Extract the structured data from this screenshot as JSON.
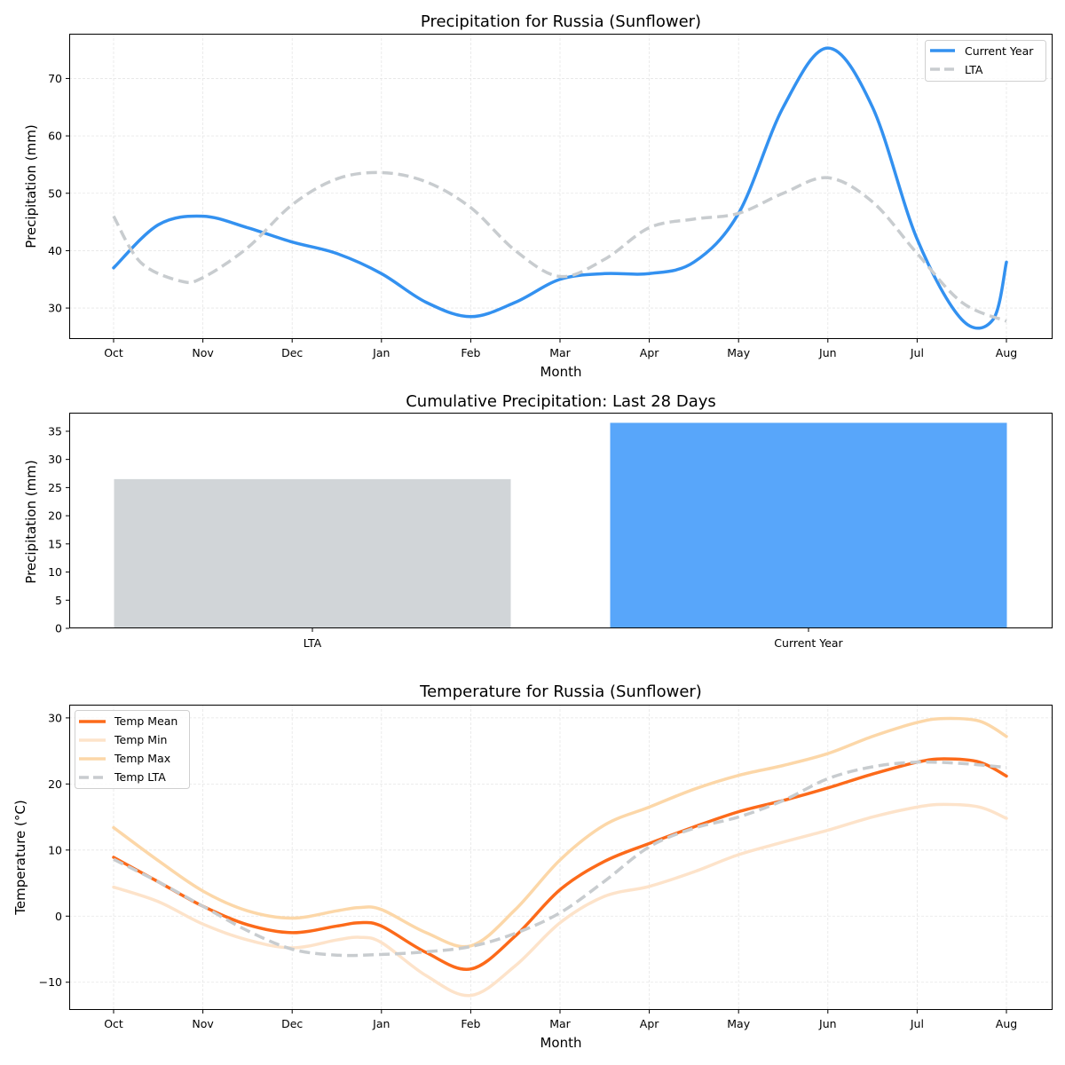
{
  "chart_data": [
    {
      "type": "line",
      "title": "Precipitation for Russia (Sunflower)",
      "xlabel": "Month",
      "ylabel": "Precipitation (mm)",
      "categories": [
        "Oct",
        "Nov",
        "Dec",
        "Jan",
        "Feb",
        "Mar",
        "Apr",
        "May",
        "Jun",
        "Jul",
        "Aug"
      ],
      "yticks": [
        30,
        40,
        50,
        60,
        70
      ],
      "ylim": [
        24.6,
        77.8
      ],
      "grid": true,
      "legend_position": "top-right",
      "series": [
        {
          "name": "Current Year",
          "color": "#3391f0",
          "style": "solid",
          "x": [
            0,
            0.5,
            1,
            1.5,
            2,
            2.5,
            3,
            3.5,
            4,
            4.5,
            5,
            5.5,
            6,
            6.5,
            7,
            7.5,
            8,
            8.5,
            9,
            9.5,
            9.85,
            10
          ],
          "values": [
            37,
            44.5,
            46,
            44,
            41.5,
            39.5,
            36,
            31,
            28.5,
            31,
            35,
            36,
            36,
            38,
            46.5,
            65,
            75.3,
            65,
            42,
            28,
            28,
            38
          ]
        },
        {
          "name": "LTA",
          "color": "#c8cccf",
          "style": "dashed",
          "x": [
            0,
            0.3,
            0.75,
            1,
            1.5,
            2,
            2.5,
            3,
            3.5,
            4,
            4.5,
            5,
            5.5,
            6,
            6.5,
            7,
            7.5,
            8,
            8.5,
            9,
            9.5,
            10
          ],
          "values": [
            46,
            38,
            34.7,
            35.3,
            40.5,
            48,
            52.5,
            53.6,
            52,
            47.5,
            40,
            35.5,
            38.5,
            44,
            45.5,
            46.5,
            50,
            52.7,
            48.5,
            39.5,
            31,
            27.7
          ]
        }
      ]
    },
    {
      "type": "bar",
      "title": "Cumulative Precipitation: Last 28 Days",
      "xlabel": "",
      "ylabel": "Precipitation (mm)",
      "categories": [
        "LTA",
        "Current Year"
      ],
      "values": [
        26.5,
        36.5
      ],
      "colors": [
        "#d1d5d8",
        "#58a6fa"
      ],
      "yticks": [
        0,
        5,
        10,
        15,
        20,
        25,
        30,
        35
      ],
      "ylim": [
        0,
        38.3
      ],
      "grid": false
    },
    {
      "type": "line",
      "title": "Temperature for Russia (Sunflower)",
      "xlabel": "Month",
      "ylabel": "Temperature (°C)",
      "categories": [
        "Oct",
        "Nov",
        "Dec",
        "Jan",
        "Feb",
        "Mar",
        "Apr",
        "May",
        "Jun",
        "Jul",
        "Aug"
      ],
      "yticks": [
        -10,
        0,
        10,
        20,
        30
      ],
      "ytick_labels": [
        "−10",
        "0",
        "10",
        "20",
        "30"
      ],
      "ylim": [
        -14.2,
        32
      ],
      "grid": true,
      "legend_position": "top-left",
      "series": [
        {
          "name": "Temp Mean",
          "color": "#fc6a1a",
          "style": "solid",
          "x": [
            0,
            0.5,
            1,
            1.5,
            2,
            2.5,
            2.75,
            3,
            3.5,
            4,
            4.5,
            5,
            5.5,
            6,
            6.5,
            7,
            7.5,
            8,
            8.5,
            9,
            9.3,
            9.7,
            10
          ],
          "values": [
            8.9,
            5.2,
            1.5,
            -1.3,
            -2.5,
            -1.5,
            -1.0,
            -1.5,
            -5.5,
            -8,
            -3,
            4,
            8.3,
            11,
            13.5,
            15.8,
            17.5,
            19.4,
            21.5,
            23.3,
            23.8,
            23.3,
            21.2
          ]
        },
        {
          "name": "Temp Min",
          "color": "#fde3ca",
          "style": "solid",
          "x": [
            0,
            0.5,
            1,
            1.5,
            2,
            2.5,
            2.75,
            3,
            3.5,
            4,
            4.5,
            5,
            5.5,
            6,
            6.5,
            7,
            7.5,
            8,
            8.5,
            9,
            9.3,
            9.7,
            10
          ],
          "values": [
            4.4,
            2.2,
            -1.2,
            -3.6,
            -4.8,
            -3.6,
            -3.2,
            -4,
            -9,
            -12,
            -7.5,
            -1,
            3,
            4.5,
            6.7,
            9.3,
            11.2,
            13,
            15,
            16.5,
            16.9,
            16.5,
            14.8
          ]
        },
        {
          "name": "Temp Max",
          "color": "#fcd7a8",
          "style": "solid",
          "x": [
            0,
            0.5,
            1,
            1.5,
            2,
            2.5,
            2.75,
            3,
            3.5,
            4,
            4.5,
            5,
            5.5,
            6,
            6.5,
            7,
            7.5,
            8,
            8.5,
            9,
            9.3,
            9.7,
            10
          ],
          "values": [
            13.4,
            8.4,
            3.8,
            0.8,
            -0.3,
            0.8,
            1.3,
            1,
            -2.5,
            -4.5,
            1,
            8.5,
            13.8,
            16.5,
            19.2,
            21.3,
            22.8,
            24.6,
            27.2,
            29.3,
            29.9,
            29.5,
            27.2
          ]
        },
        {
          "name": "Temp LTA",
          "color": "#c8cccf",
          "style": "dashed",
          "x": [
            0,
            0.5,
            1,
            1.5,
            2,
            2.5,
            3,
            3.5,
            4,
            4.5,
            5,
            5.5,
            6,
            6.5,
            7,
            7.5,
            8,
            8.5,
            9,
            9.5,
            10
          ],
          "values": [
            8.6,
            5.2,
            1.5,
            -2.2,
            -5,
            -5.9,
            -5.8,
            -5.4,
            -4.6,
            -2.6,
            0.5,
            5.3,
            10.5,
            13.3,
            15,
            17.5,
            20.8,
            22.6,
            23.3,
            23.1,
            22.5
          ]
        }
      ]
    }
  ]
}
